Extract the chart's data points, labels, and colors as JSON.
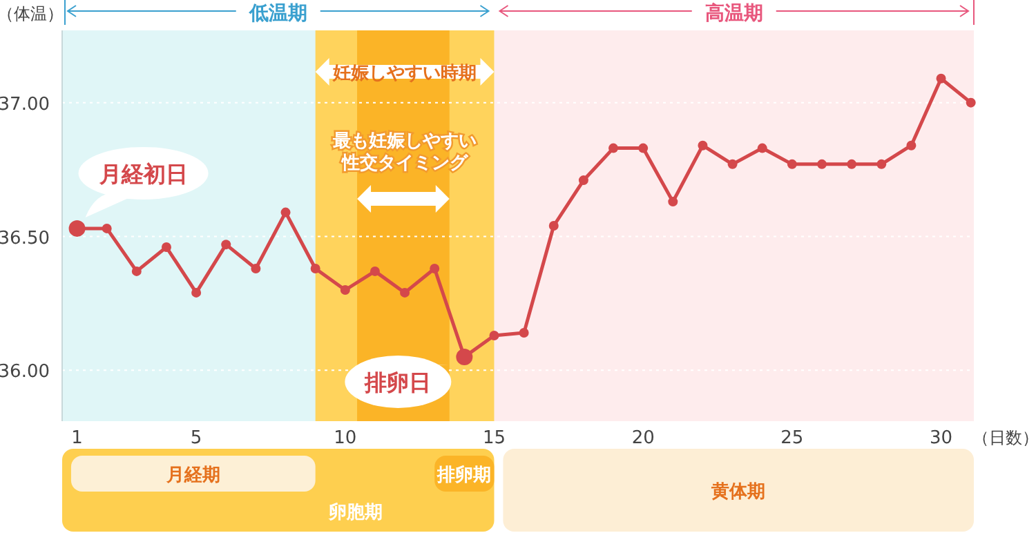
{
  "chart_data": {
    "type": "line",
    "xlabel": "（日数）",
    "ylabel": "（体温）",
    "x": [
      1,
      2,
      3,
      4,
      5,
      6,
      7,
      8,
      9,
      10,
      11,
      12,
      13,
      14,
      15,
      16,
      17,
      18,
      19,
      20,
      21,
      22,
      23,
      24,
      25,
      26,
      27,
      28,
      29,
      30,
      31
    ],
    "series": [
      {
        "color": "#d4484b",
        "values": [
          36.53,
          36.53,
          36.37,
          36.46,
          36.29,
          36.47,
          36.38,
          36.59,
          36.38,
          36.3,
          36.37,
          36.29,
          36.38,
          36.05,
          36.13,
          36.14,
          36.54,
          36.71,
          36.83,
          36.83,
          36.63,
          36.84,
          36.77,
          36.83,
          36.77,
          36.77,
          36.77,
          36.77,
          36.84,
          37.09,
          37.0
        ]
      }
    ],
    "xlim": [
      0.5,
      31.1
    ],
    "ylim": [
      35.81,
      37.27
    ],
    "xticks": [
      1,
      5,
      10,
      15,
      20,
      25,
      30
    ],
    "yticks": [
      {
        "value": 36,
        "label": "36.00"
      },
      {
        "value": 36.5,
        "label": "36.50"
      },
      {
        "value": 37,
        "label": "37.00"
      }
    ],
    "grid": "y",
    "marker": "circle",
    "bands": [
      {
        "axis": "x",
        "from": 0.5,
        "to": 15,
        "label": "低温期",
        "color": "#e0f6f7"
      },
      {
        "axis": "x",
        "from": 15,
        "to": 31.1,
        "label": "高温期",
        "color": "#feeced"
      },
      {
        "axis": "x",
        "from": 9,
        "to": 15,
        "label": "妊娠しやすい時期",
        "color": "#ffd35c"
      },
      {
        "axis": "x",
        "from": 10.4,
        "to": 13.5,
        "label": "最も妊娠しやすい性交タイミング",
        "color": "#fbb427"
      }
    ],
    "annotations": [
      {
        "text": "月経初日",
        "x": 1,
        "y": 36.53
      },
      {
        "text": "排卵日",
        "x": 14,
        "y": 36.05
      },
      "卵胞期",
      "月経期",
      "排卵期",
      "黄体期"
    ]
  }
}
